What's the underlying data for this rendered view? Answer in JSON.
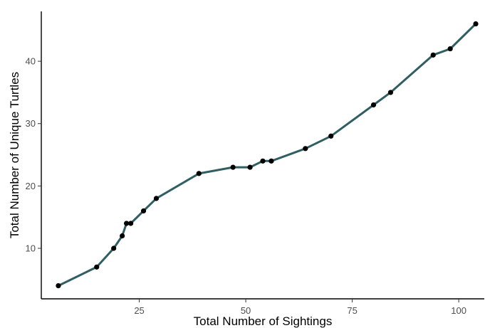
{
  "chart_data": {
    "type": "line",
    "xlabel": "Total Number of Sightings",
    "ylabel": "Total Number of Unique Turtles",
    "xlim": [
      2,
      106
    ],
    "ylim": [
      1.9,
      48
    ],
    "xticks": [
      25,
      50,
      75,
      100
    ],
    "yticks": [
      10,
      20,
      30,
      40
    ],
    "grid": false,
    "legend": "none",
    "line_color": "#2f5f63",
    "point_color": "#000000",
    "x": [
      6,
      15,
      19,
      21,
      22,
      23,
      26,
      29,
      39,
      47,
      51,
      54,
      56,
      64,
      70,
      80,
      84,
      94,
      98,
      104
    ],
    "y": [
      4,
      7,
      10,
      12,
      14,
      14,
      16,
      18,
      22,
      23,
      23,
      24,
      24,
      26,
      28,
      33,
      35,
      41,
      42,
      46
    ]
  }
}
